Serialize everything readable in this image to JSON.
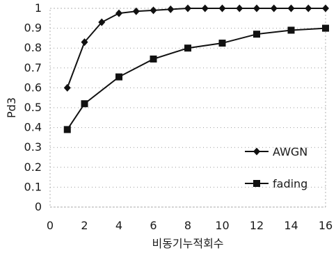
{
  "chart_data": {
    "type": "line",
    "xlabel": "비동기누적회수",
    "ylabel": "Pd3",
    "xlim": [
      0,
      16
    ],
    "ylim": [
      0,
      1
    ],
    "xticks": [
      "0",
      "2",
      "4",
      "6",
      "8",
      "10",
      "12",
      "14",
      "16"
    ],
    "yticks": [
      "0",
      "0.1",
      "0.2",
      "0.3",
      "0.4",
      "0.5",
      "0.6",
      "0.7",
      "0.8",
      "0.9",
      "1"
    ],
    "grid": true,
    "legend_position": "bottom-right",
    "series": [
      {
        "name": "AWGN",
        "marker": "diamond",
        "x": [
          1,
          2,
          3,
          4,
          5,
          6,
          7,
          8,
          9,
          10,
          11,
          12,
          13,
          14,
          15,
          16
        ],
        "values": [
          0.6,
          0.83,
          0.93,
          0.975,
          0.985,
          0.99,
          0.995,
          1.0,
          1.0,
          1.0,
          1.0,
          1.0,
          1.0,
          1.0,
          1.0,
          1.0
        ]
      },
      {
        "name": "fading",
        "marker": "square",
        "x": [
          1,
          2,
          4,
          6,
          8,
          10,
          12,
          14,
          16
        ],
        "values": [
          0.39,
          0.52,
          0.655,
          0.745,
          0.8,
          0.825,
          0.87,
          0.89,
          0.9
        ]
      }
    ]
  }
}
